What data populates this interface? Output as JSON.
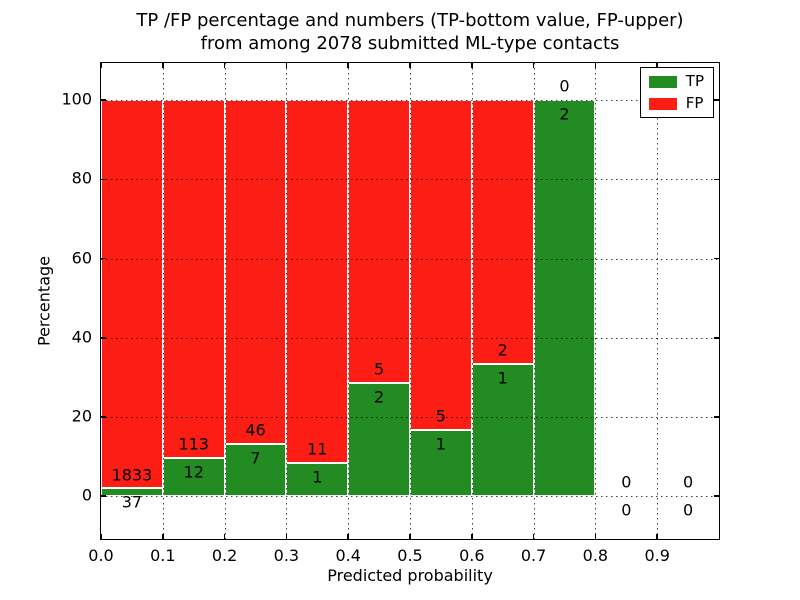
{
  "title": {
    "line1": "TP /FP percentage and numbers (TP-bottom value, FP-upper)",
    "line2": "from among 2078 submitted ML-type contacts"
  },
  "axes": {
    "x_label": "Predicted probability",
    "y_label": "Percentage",
    "xlim": [
      0,
      1
    ],
    "ylim": [
      -10.8,
      109.4
    ],
    "x_ticks": [
      {
        "v": 0.0,
        "label": "0.0"
      },
      {
        "v": 0.1,
        "label": "0.1"
      },
      {
        "v": 0.2,
        "label": "0.2"
      },
      {
        "v": 0.3,
        "label": "0.3"
      },
      {
        "v": 0.4,
        "label": "0.4"
      },
      {
        "v": 0.5,
        "label": "0.5"
      },
      {
        "v": 0.6,
        "label": "0.6"
      },
      {
        "v": 0.7,
        "label": "0.7"
      },
      {
        "v": 0.8,
        "label": "0.8"
      },
      {
        "v": 0.9,
        "label": "0.9"
      }
    ],
    "y_ticks": [
      {
        "v": 0,
        "label": "0"
      },
      {
        "v": 20,
        "label": "20"
      },
      {
        "v": 40,
        "label": "40"
      },
      {
        "v": 60,
        "label": "60"
      },
      {
        "v": 80,
        "label": "80"
      },
      {
        "v": 100,
        "label": "100"
      }
    ],
    "grid": "dotted, horizontal at y ticks and vertical at x ticks, drawn over bars"
  },
  "legend": {
    "position": "upper right",
    "items": [
      {
        "label": "TP",
        "color": "#228b22"
      },
      {
        "label": "FP",
        "color": "#fc1d15"
      }
    ]
  },
  "colors": {
    "tp": "#228b22",
    "fp": "#fc1d15",
    "bar_edge": "#ffffff",
    "frame": "#000000",
    "background": "#ffffff",
    "text": "#000000"
  },
  "chart_data": {
    "type": "bar",
    "stacked": true,
    "normalized_to_percent_per_bin": true,
    "title": "TP /FP percentage and numbers (TP-bottom value, FP-upper) from among 2078 submitted ML-type contacts",
    "xlabel": "Predicted probability",
    "ylabel": "Percentage",
    "total_contacts": 2078,
    "categories": [
      "0.0-0.1",
      "0.1-0.2",
      "0.2-0.3",
      "0.3-0.4",
      "0.4-0.5",
      "0.5-0.6",
      "0.6-0.7",
      "0.7-0.8",
      "0.8-0.9",
      "0.9-1.0"
    ],
    "series": [
      {
        "name": "TP",
        "color": "#228b22",
        "counts": [
          37,
          12,
          7,
          1,
          2,
          1,
          1,
          2,
          0,
          0
        ]
      },
      {
        "name": "FP",
        "color": "#fc1d15",
        "counts": [
          1833,
          113,
          46,
          11,
          5,
          5,
          2,
          0,
          0,
          0
        ]
      }
    ],
    "bins": [
      {
        "x0": 0.0,
        "x1": 0.1,
        "tp": 37,
        "fp": 1833
      },
      {
        "x0": 0.1,
        "x1": 0.2,
        "tp": 12,
        "fp": 113
      },
      {
        "x0": 0.2,
        "x1": 0.3,
        "tp": 7,
        "fp": 46
      },
      {
        "x0": 0.3,
        "x1": 0.4,
        "tp": 1,
        "fp": 11
      },
      {
        "x0": 0.4,
        "x1": 0.5,
        "tp": 2,
        "fp": 5
      },
      {
        "x0": 0.5,
        "x1": 0.6,
        "tp": 1,
        "fp": 5
      },
      {
        "x0": 0.6,
        "x1": 0.7,
        "tp": 1,
        "fp": 2
      },
      {
        "x0": 0.7,
        "x1": 0.8,
        "tp": 2,
        "fp": 0
      },
      {
        "x0": 0.8,
        "x1": 0.9,
        "tp": 0,
        "fp": 0
      },
      {
        "x0": 0.9,
        "x1": 1.0,
        "tp": 0,
        "fp": 0
      }
    ],
    "tp_percent_per_bin": [
      1.98,
      9.6,
      13.21,
      8.33,
      28.57,
      16.67,
      33.33,
      100,
      null,
      null
    ],
    "label_offset_units": 3.5
  }
}
